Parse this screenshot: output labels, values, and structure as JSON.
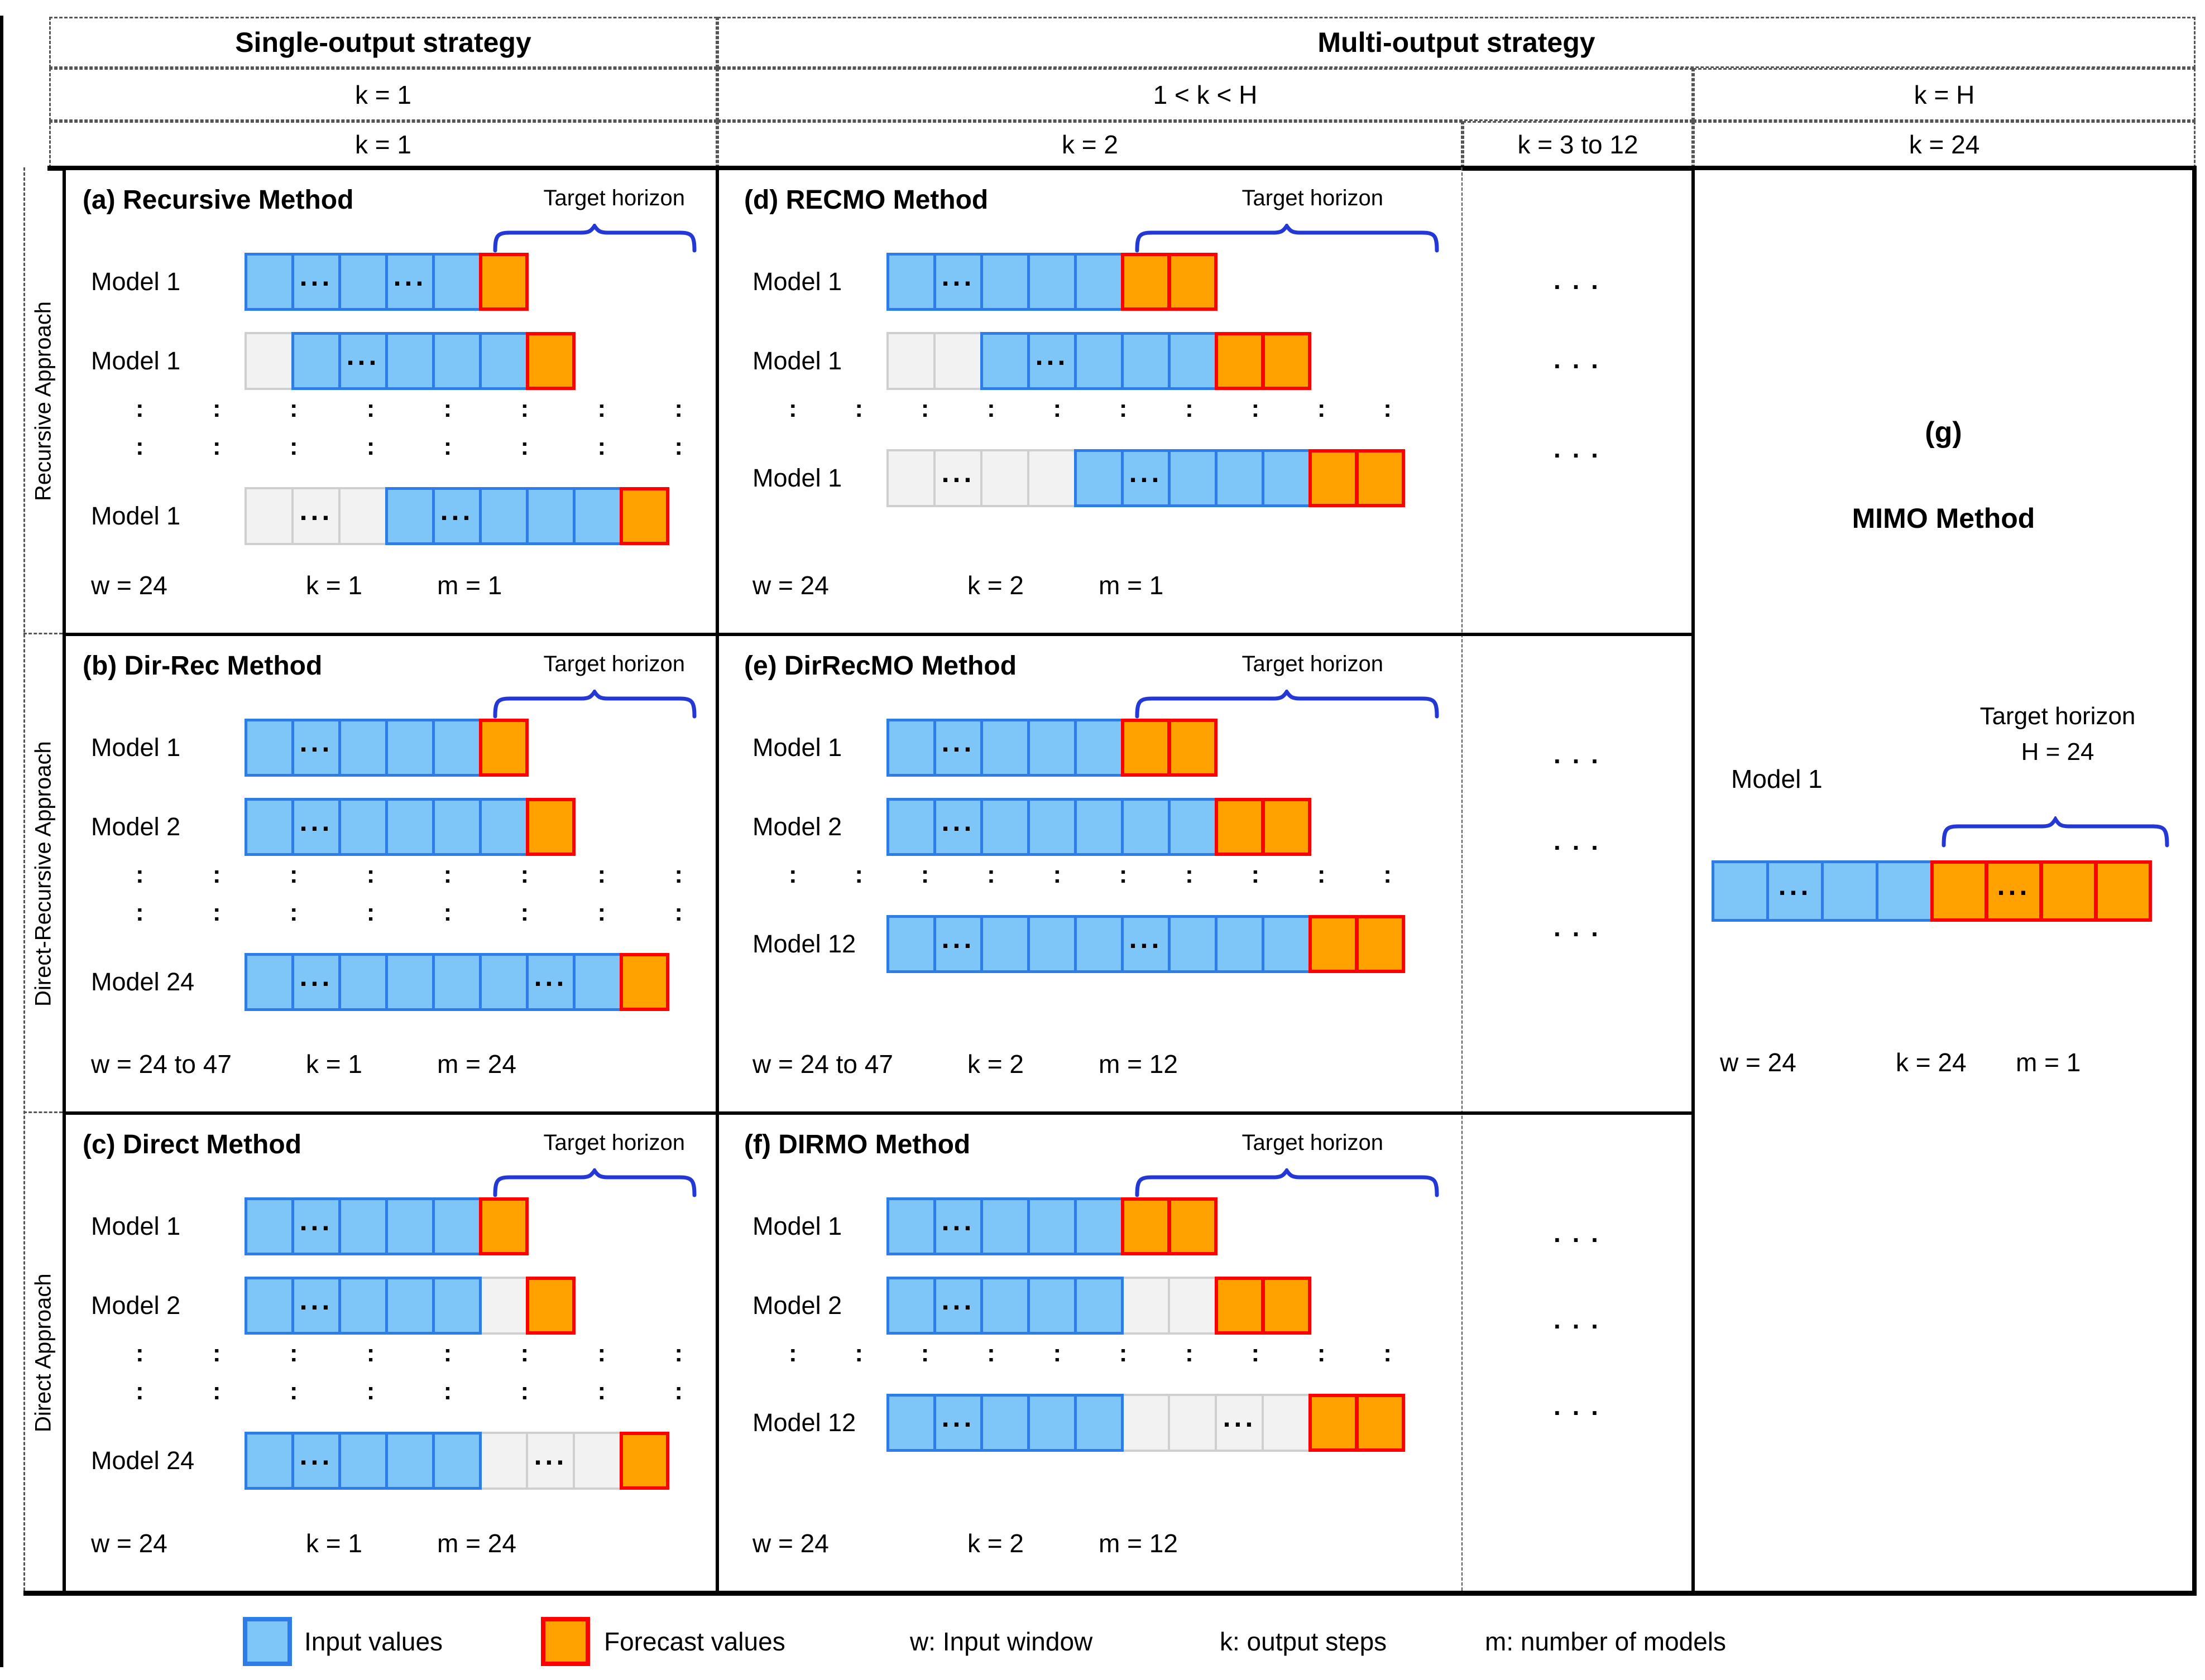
{
  "header": {
    "strategies": [
      "Single-output strategy",
      "Multi-output strategy"
    ],
    "k_ranges": [
      "k = 1",
      "1 < k < H",
      "k = H"
    ],
    "k_values": [
      "k = 1",
      "k = 2",
      "k = 3 to 12",
      "k = 24"
    ]
  },
  "approaches": [
    "Recursive Approach",
    "Direct-Recursive Approach",
    "Direct Approach"
  ],
  "dots_column": {
    "symbol": ". . ."
  },
  "panels": {
    "a": {
      "title": "(a) Recursive Method",
      "target": "Target horizon",
      "rows": [
        {
          "label": "Model 1",
          "cells": [
            "b",
            "b.",
            "b",
            "b.",
            "b",
            "o"
          ]
        },
        {
          "label": "Model 1",
          "cells": [
            "g",
            "b",
            "b.",
            "b",
            "b",
            "b",
            "o"
          ]
        },
        {
          "label": "Model 1",
          "cells": [
            "g",
            "g.",
            "g",
            "b",
            "b.",
            "b",
            "b",
            "b",
            "o"
          ]
        }
      ],
      "vdots": {
        "rows": 2,
        "cols": 8
      },
      "caption": [
        "w = 24",
        "k = 1",
        "m = 1"
      ]
    },
    "b": {
      "title": "(b) Dir-Rec Method",
      "target": "Target horizon",
      "rows": [
        {
          "label": "Model 1",
          "cells": [
            "b",
            "b.",
            "b",
            "b",
            "b",
            "o"
          ]
        },
        {
          "label": "Model 2",
          "cells": [
            "b",
            "b.",
            "b",
            "b",
            "b",
            "b",
            "o"
          ]
        },
        {
          "label": "Model 24",
          "cells": [
            "b",
            "b.",
            "b",
            "b",
            "b",
            "b",
            "b.",
            "b",
            "o"
          ]
        }
      ],
      "vdots": {
        "rows": 2,
        "cols": 8
      },
      "caption": [
        "w = 24 to 47",
        "k = 1",
        "m = 24"
      ]
    },
    "c": {
      "title": "(c) Direct Method",
      "target": "Target horizon",
      "rows": [
        {
          "label": "Model 1",
          "cells": [
            "b",
            "b.",
            "b",
            "b",
            "b",
            "o"
          ]
        },
        {
          "label": "Model 2",
          "cells": [
            "b",
            "b.",
            "b",
            "b",
            "b",
            "g",
            "o"
          ]
        },
        {
          "label": "Model 24",
          "cells": [
            "b",
            "b.",
            "b",
            "b",
            "b",
            "g",
            "g.",
            "g",
            "o"
          ]
        }
      ],
      "vdots": {
        "rows": 2,
        "cols": 8
      },
      "caption": [
        "w = 24",
        "k = 1",
        "m = 24"
      ]
    },
    "d": {
      "title": "(d) RECMO Method",
      "target": "Target horizon",
      "rows": [
        {
          "label": "Model 1",
          "cells": [
            "b",
            "b.",
            "b",
            "b",
            "b",
            "o",
            "o"
          ]
        },
        {
          "label": "Model 1",
          "cells": [
            "g",
            "g",
            "b",
            "b.",
            "b",
            "b",
            "b",
            "o",
            "o"
          ]
        },
        {
          "label": "Model 1",
          "cells": [
            "g",
            "g.",
            "g",
            "g",
            "b",
            "b.",
            "b",
            "b",
            "b",
            "o",
            "o"
          ]
        }
      ],
      "vdots": {
        "rows": 1,
        "cols": 10
      },
      "caption": [
        "w = 24",
        "k = 2",
        "m = 1"
      ]
    },
    "e": {
      "title": "(e) DirRecMO Method",
      "target": "Target horizon",
      "rows": [
        {
          "label": "Model 1",
          "cells": [
            "b",
            "b.",
            "b",
            "b",
            "b",
            "o",
            "o"
          ]
        },
        {
          "label": "Model 2",
          "cells": [
            "b",
            "b.",
            "b",
            "b",
            "b",
            "b",
            "b",
            "o",
            "o"
          ]
        },
        {
          "label": "Model 12",
          "cells": [
            "b",
            "b.",
            "b",
            "b",
            "b",
            "b.",
            "b",
            "b",
            "b",
            "o",
            "o"
          ]
        }
      ],
      "vdots": {
        "rows": 1,
        "cols": 10
      },
      "caption": [
        "w = 24 to 47",
        "k = 2",
        "m = 12"
      ]
    },
    "f": {
      "title": "(f) DIRMO Method",
      "target": "Target horizon",
      "rows": [
        {
          "label": "Model 1",
          "cells": [
            "b",
            "b.",
            "b",
            "b",
            "b",
            "o",
            "o"
          ]
        },
        {
          "label": "Model 2",
          "cells": [
            "b",
            "b.",
            "b",
            "b",
            "b",
            "g",
            "g",
            "o",
            "o"
          ]
        },
        {
          "label": "Model 12",
          "cells": [
            "b",
            "b.",
            "b",
            "b",
            "b",
            "g",
            "g",
            "g.",
            "g",
            "o",
            "o"
          ]
        }
      ],
      "vdots": {
        "rows": 1,
        "cols": 10
      },
      "caption": [
        "w = 24",
        "k = 2",
        "m = 12"
      ]
    },
    "g": {
      "heading": "(g)",
      "title": "MIMO Method",
      "model_label": "Model 1",
      "target": "Target horizon",
      "h_value": "H = 24",
      "cells": [
        "b",
        "b.",
        "b",
        "b",
        "o",
        "o.",
        "o",
        "o"
      ],
      "caption": [
        "w = 24",
        "k = 24",
        "m = 1"
      ]
    }
  },
  "legend": {
    "input": "Input values",
    "forecast": "Forecast values",
    "w": "w: Input window",
    "k": "k: output steps",
    "m": "m: number of models"
  },
  "colors": {
    "input_fill": "#7EC6F8",
    "input_border": "#2E7CE8",
    "forecast_fill": "#FFA200",
    "forecast_border": "#FF0000",
    "empty_fill": "#F2F2F2",
    "empty_border": "#CFCFCF",
    "brace": "#2338D4"
  }
}
